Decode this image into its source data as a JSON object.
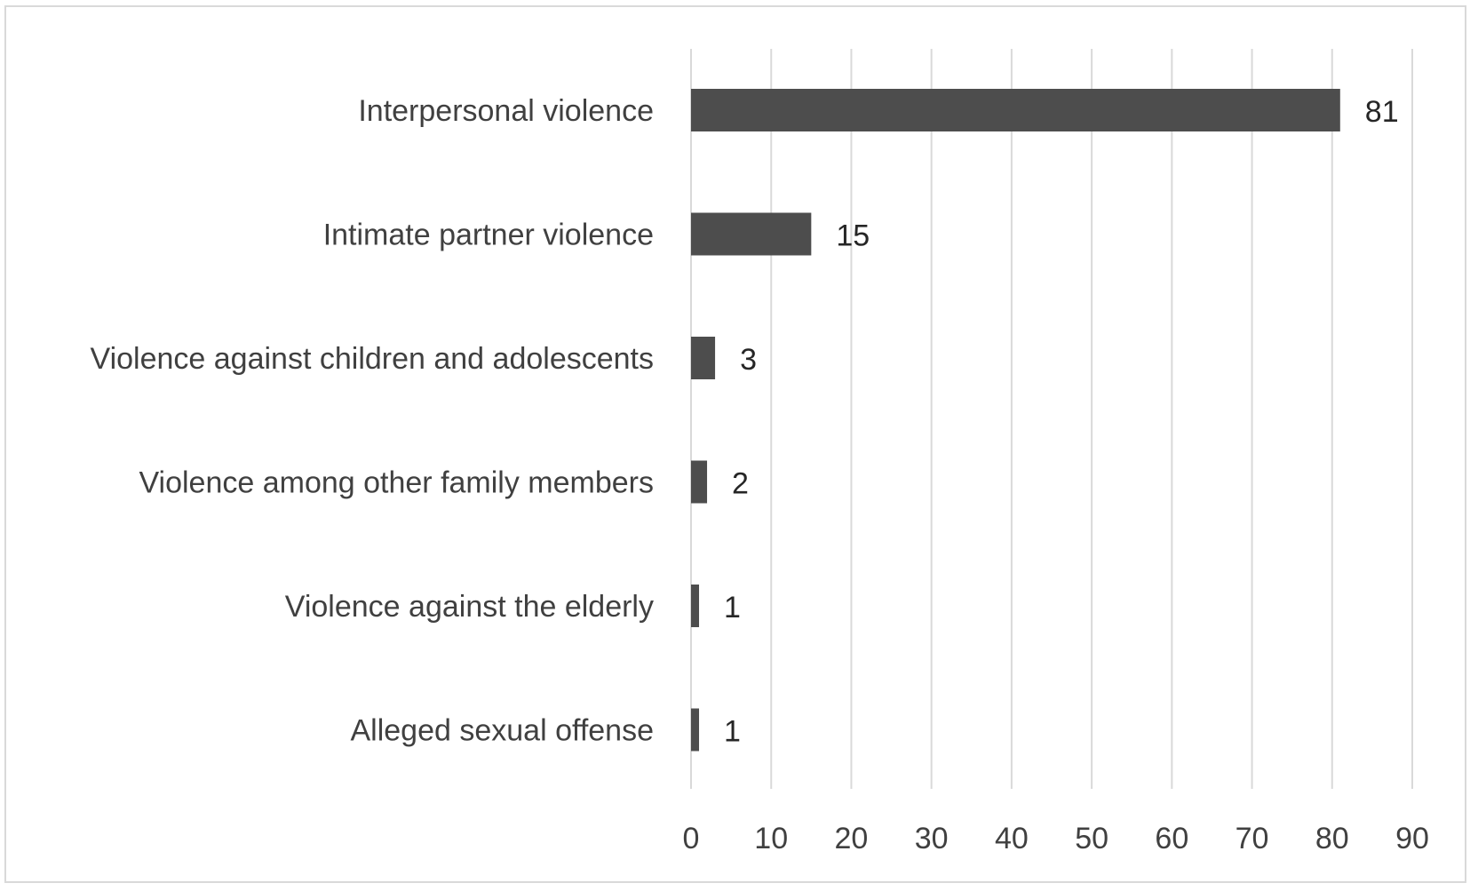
{
  "chart_data": {
    "type": "bar",
    "orientation": "horizontal",
    "categories": [
      "Interpersonal violence",
      "Intimate partner violence",
      "Violence against children and adolescents",
      "Violence among other family members",
      "Violence against the elderly",
      "Alleged sexual offense"
    ],
    "values": [
      81,
      15,
      3,
      2,
      1,
      1
    ],
    "data_labels": [
      "81",
      "15",
      "3",
      "2",
      "1",
      "1"
    ],
    "x_ticks": [
      "0",
      "10",
      "20",
      "30",
      "40",
      "50",
      "60",
      "70",
      "80",
      "90"
    ],
    "xlim": [
      0,
      90
    ],
    "grid": "vertical",
    "legend": "none",
    "title": "",
    "xlabel": "",
    "ylabel": "",
    "colors": {
      "bar": "#4d4d4d",
      "grid": "#d9d9d9",
      "text": "#404040",
      "border": "#d9d9d9"
    }
  }
}
